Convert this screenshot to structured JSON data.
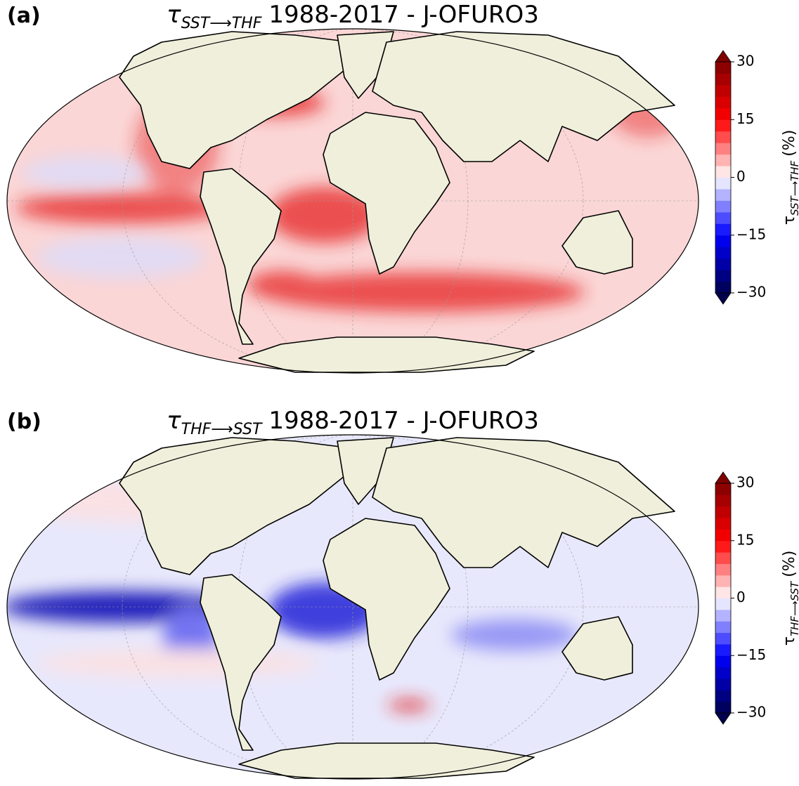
{
  "panels": [
    {
      "label": "(a)",
      "title": {
        "symbol": "τ",
        "subscript": "SST⟶THF",
        "text": "1988-2017 - J-OFURO3"
      },
      "colorbar": {
        "lim": [
          -30,
          30
        ],
        "ticks": [
          {
            "value": 30,
            "label": "30"
          },
          {
            "value": 15,
            "label": "15"
          },
          {
            "value": 0,
            "label": "0"
          },
          {
            "value": -15,
            "label": "−15"
          },
          {
            "value": -30,
            "label": "−30"
          }
        ],
        "label": {
          "symbol": "τ",
          "subscript": "SST⟶THF",
          "unit": "(%)"
        }
      }
    },
    {
      "label": "(b)",
      "title": {
        "symbol": "τ",
        "subscript": "THF⟶SST",
        "text": "1988-2017 - J-OFURO3"
      },
      "colorbar": {
        "lim": [
          -30,
          30
        ],
        "ticks": [
          {
            "value": 30,
            "label": "30"
          },
          {
            "value": 15,
            "label": "15"
          },
          {
            "value": 0,
            "label": "0"
          },
          {
            "value": -15,
            "label": "−15"
          },
          {
            "value": -30,
            "label": "−30"
          }
        ],
        "label": {
          "symbol": "τ",
          "subscript": "THF⟶SST",
          "unit": "(%)"
        }
      }
    }
  ]
}
